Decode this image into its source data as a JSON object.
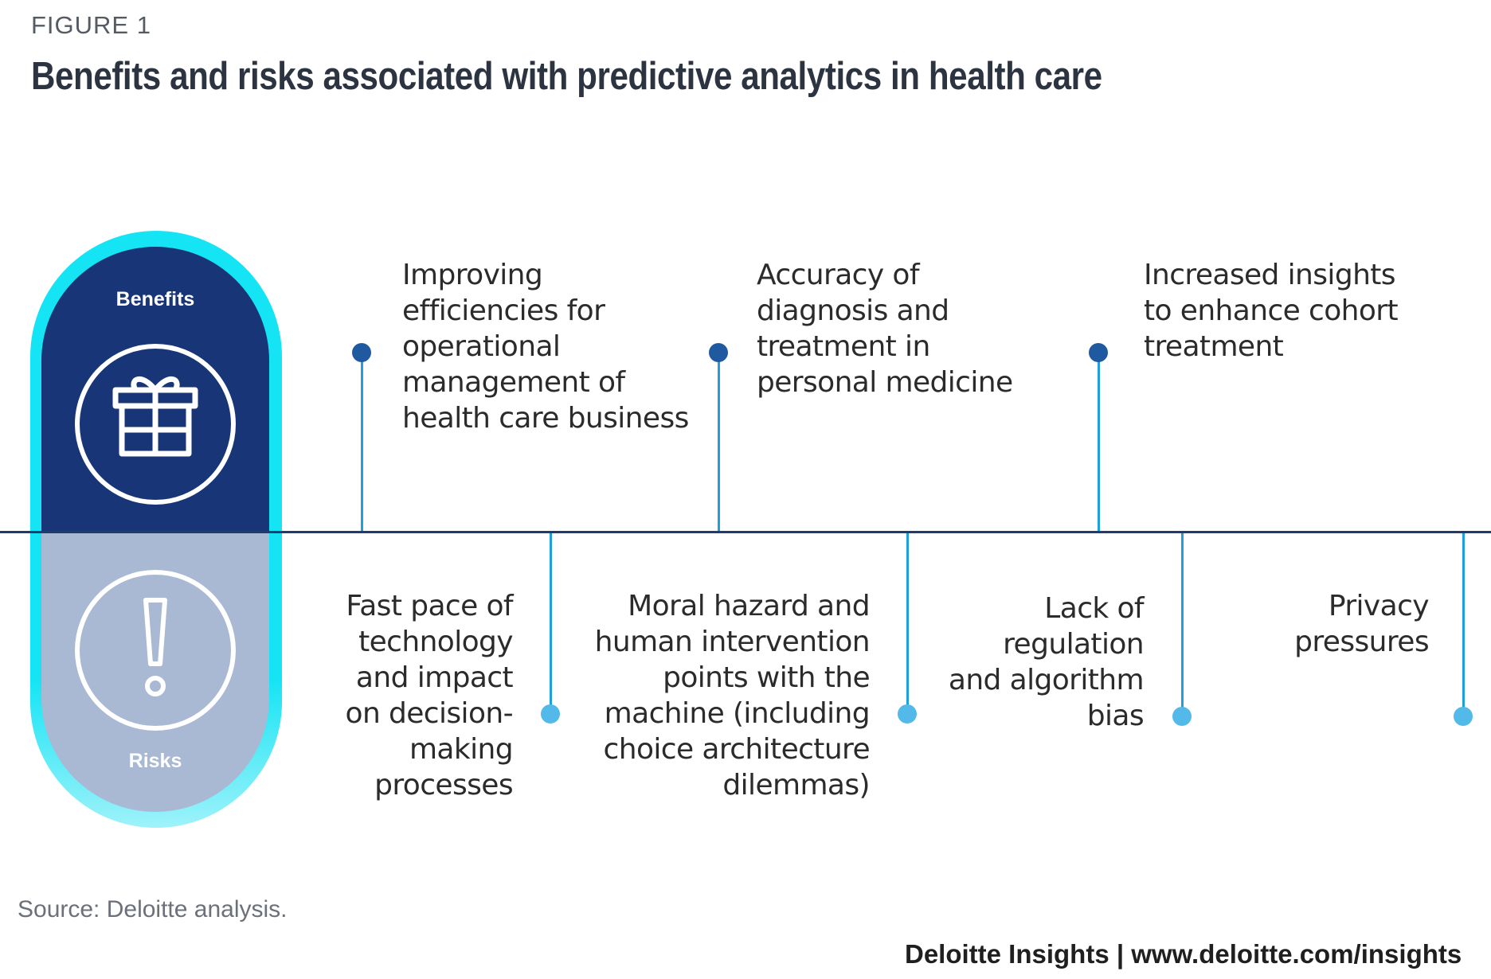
{
  "figure_label": "FIGURE 1",
  "title": "Benefits and risks associated with predictive analytics in health care",
  "pill": {
    "benefits_label": "Benefits",
    "risks_label": "Risks",
    "benefits_icon": "gift-icon",
    "risks_icon": "exclamation-icon"
  },
  "benefits": [
    {
      "text": "Improving\nefficiencies for\noperational\nmanagement of\nhealth care business"
    },
    {
      "text": "Accuracy of\ndiagnosis and\ntreatment in\npersonal medicine"
    },
    {
      "text": "Increased insights\nto enhance cohort\ntreatment"
    }
  ],
  "risks": [
    {
      "text": "Fast pace of\ntechnology\nand impact\non decision-\nmaking\nprocesses"
    },
    {
      "text": "Moral hazard and\nhuman intervention\npoints with the\nmachine (including\nchoice architecture\ndilemmas)"
    },
    {
      "text": "Lack of\nregulation\nand algorithm\nbias"
    },
    {
      "text": "Privacy\npressures"
    }
  ],
  "source": "Source: Deloitte analysis.",
  "footer": "Deloitte Insights | www.deloitte.com/insights",
  "colors": {
    "navy": "#173577",
    "cyan": "#14e4f4",
    "risk_fill": "#a9b8d3",
    "connector": "#1da0db",
    "benefit_dot": "#1f5aa0",
    "risk_dot": "#52b9e8"
  }
}
